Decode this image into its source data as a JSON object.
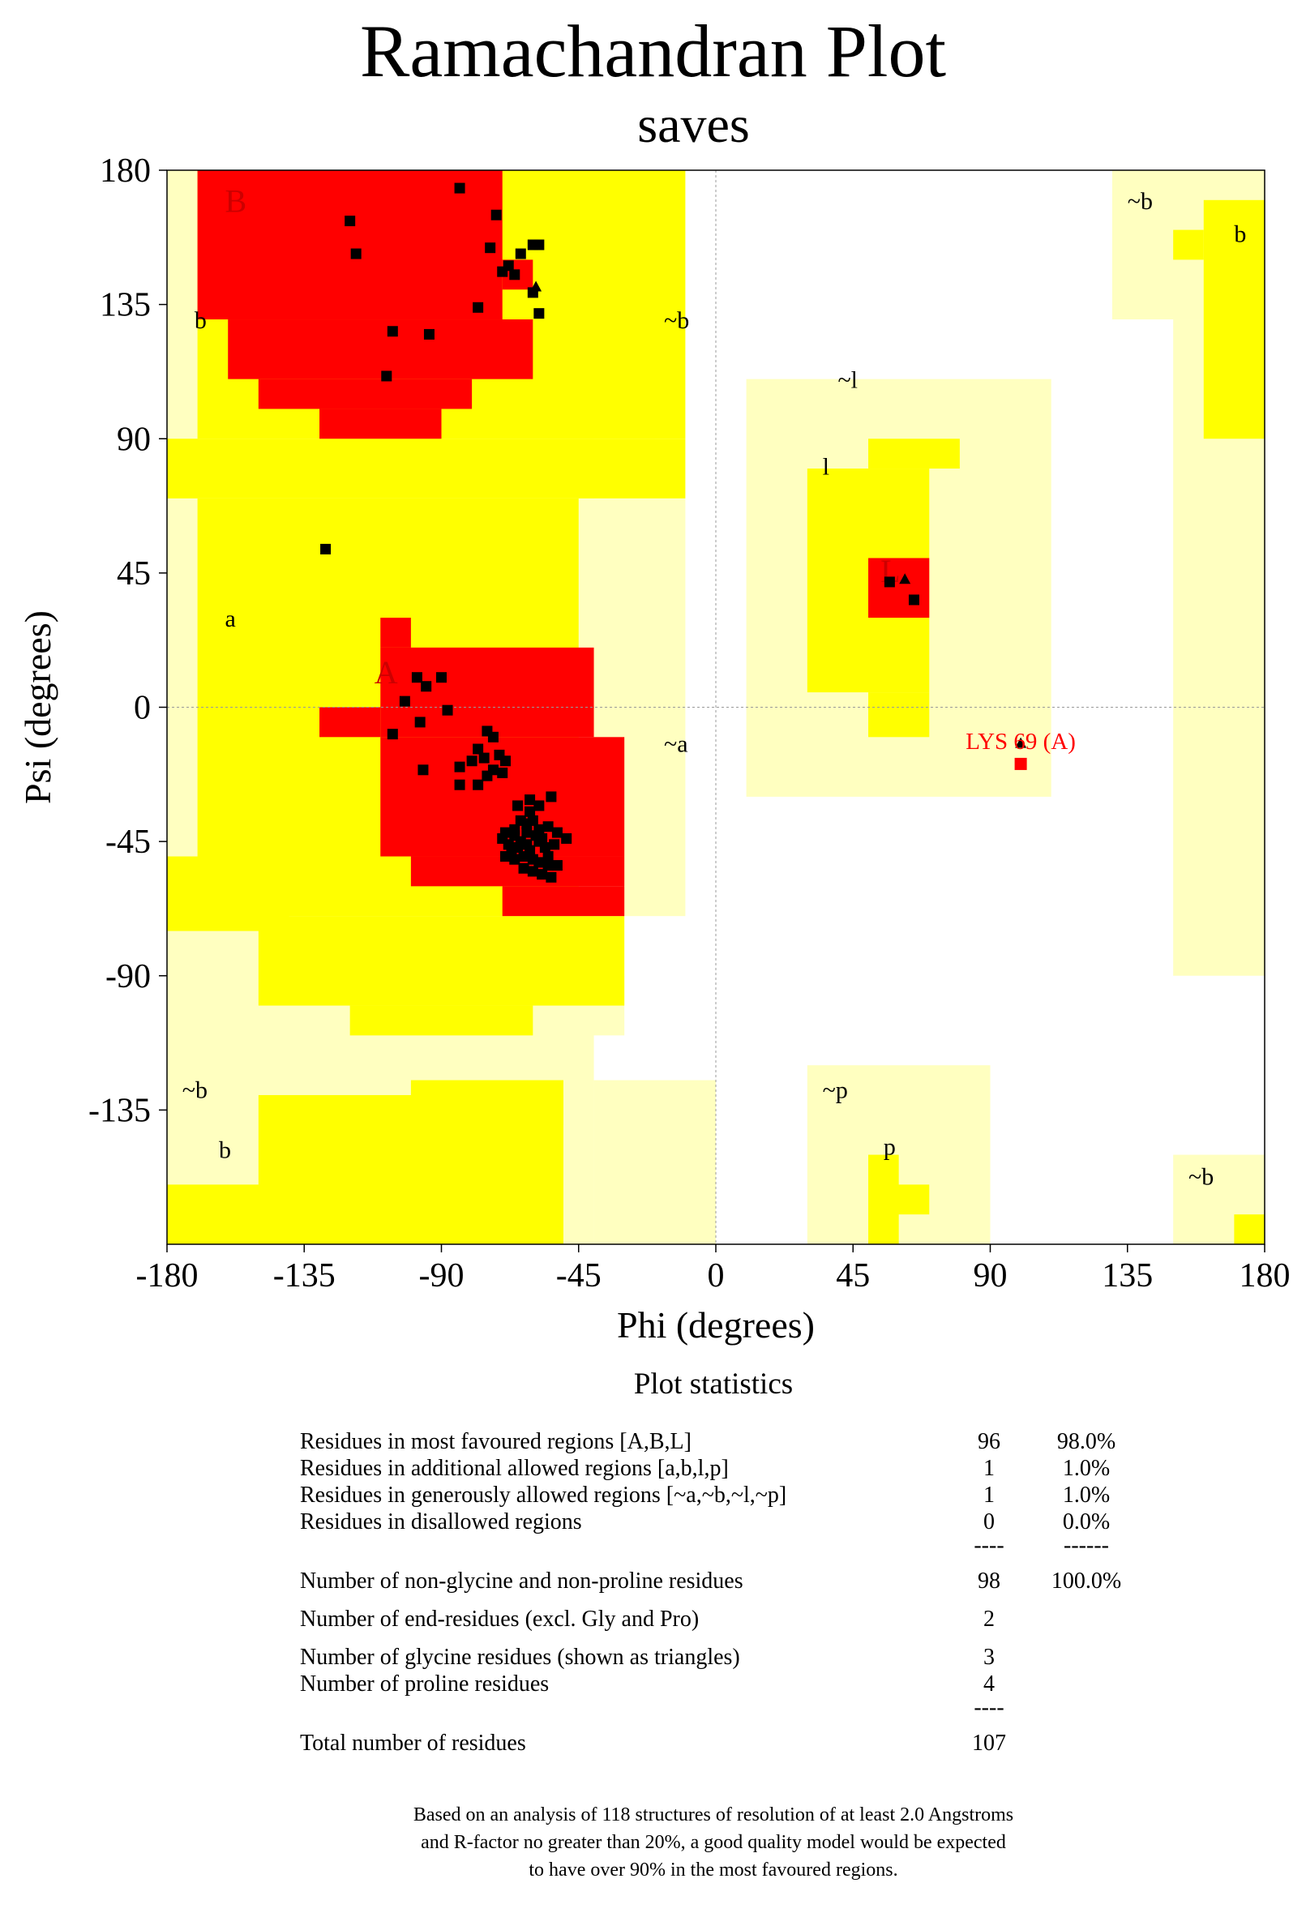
{
  "chart_data": {
    "type": "scatter",
    "title": "Ramachandran Plot",
    "subtitle": "saves",
    "xlabel": "Phi (degrees)",
    "ylabel": "Psi (degrees)",
    "xlim": [
      -180,
      180
    ],
    "ylim": [
      -180,
      180
    ],
    "xticks": [
      "-180",
      "-135",
      "-90",
      "-45",
      "0",
      "45",
      "90",
      "135",
      "180"
    ],
    "yticks": [
      "180",
      "135",
      "90",
      "45",
      "0",
      "-45",
      "-90",
      "-135"
    ],
    "region_colors": {
      "most_favoured": "#ff0000",
      "additional_allowed": "#ffff00",
      "generously_allowed": "#ffffc0",
      "disallowed": "#ffffff"
    },
    "region_labels": [
      {
        "text": "B",
        "phi": -161,
        "psi": 166,
        "color": "#cc0000"
      },
      {
        "text": "b",
        "phi": -171,
        "psi": 127
      },
      {
        "text": "~b",
        "phi": -17,
        "psi": 127
      },
      {
        "text": "~b",
        "phi": 135,
        "psi": 167
      },
      {
        "text": "b",
        "phi": 170,
        "psi": 156
      },
      {
        "text": "~l",
        "phi": 40,
        "psi": 107
      },
      {
        "text": "l",
        "phi": 35,
        "psi": 78
      },
      {
        "text": "L",
        "phi": 54,
        "psi": 42,
        "color": "#cc0000"
      },
      {
        "text": "a",
        "phi": -161,
        "psi": 27
      },
      {
        "text": "A",
        "phi": -112,
        "psi": 8,
        "color": "#cc0000"
      },
      {
        "text": "~a",
        "phi": -17,
        "psi": -15
      },
      {
        "text": "~b",
        "phi": -175,
        "psi": -131
      },
      {
        "text": "b",
        "phi": -163,
        "psi": -151
      },
      {
        "text": "~p",
        "phi": 35,
        "psi": -131
      },
      {
        "text": "p",
        "phi": 55,
        "psi": -150
      },
      {
        "text": "~b",
        "phi": 155,
        "psi": -160
      }
    ],
    "series": [
      {
        "name": "non-glycine residues",
        "marker": "square",
        "points": [
          [
            -84,
            174
          ],
          [
            -120,
            163
          ],
          [
            -72,
            165
          ],
          [
            -118,
            152
          ],
          [
            -74,
            154
          ],
          [
            -58,
            155
          ],
          [
            -60,
            155
          ],
          [
            -64,
            152
          ],
          [
            -68,
            148
          ],
          [
            -66,
            145
          ],
          [
            -70,
            146
          ],
          [
            -60,
            139
          ],
          [
            -78,
            134
          ],
          [
            -58,
            132
          ],
          [
            -106,
            126
          ],
          [
            -94,
            125
          ],
          [
            -108,
            111
          ],
          [
            -128,
            53
          ],
          [
            -98,
            10
          ],
          [
            -90,
            10
          ],
          [
            -95,
            7
          ],
          [
            -102,
            2
          ],
          [
            -88,
            -1
          ],
          [
            -97,
            -5
          ],
          [
            -106,
            -9
          ],
          [
            -75,
            -8
          ],
          [
            -73,
            -10
          ],
          [
            -80,
            -18
          ],
          [
            -76,
            -17
          ],
          [
            -71,
            -16
          ],
          [
            -69,
            -18
          ],
          [
            -73,
            -21
          ],
          [
            -78,
            -14
          ],
          [
            -84,
            -20
          ],
          [
            -75,
            -23
          ],
          [
            -70,
            -22
          ],
          [
            -96,
            -21
          ],
          [
            -78,
            -26
          ],
          [
            -84,
            -26
          ],
          [
            -61,
            -31
          ],
          [
            -65,
            -33
          ],
          [
            -61,
            -35
          ],
          [
            -58,
            -33
          ],
          [
            -54,
            -30
          ],
          [
            -64,
            -38
          ],
          [
            -60,
            -38
          ],
          [
            -66,
            -41
          ],
          [
            -69,
            -42
          ],
          [
            -66,
            -43
          ],
          [
            -62,
            -42
          ],
          [
            -58,
            -41
          ],
          [
            -55,
            -40
          ],
          [
            -52,
            -42
          ],
          [
            -70,
            -44
          ],
          [
            -68,
            -46
          ],
          [
            -65,
            -47
          ],
          [
            -62,
            -46
          ],
          [
            -58,
            -45
          ],
          [
            -56,
            -47
          ],
          [
            -53,
            -46
          ],
          [
            -49,
            -44
          ],
          [
            -69,
            -50
          ],
          [
            -66,
            -51
          ],
          [
            -63,
            -50
          ],
          [
            -60,
            -51
          ],
          [
            -58,
            -52
          ],
          [
            -55,
            -53
          ],
          [
            -52,
            -53
          ],
          [
            -63,
            -54
          ],
          [
            -60,
            -55
          ],
          [
            -57,
            -56
          ],
          [
            -54,
            -57
          ],
          [
            -62,
            -39
          ],
          [
            -55,
            -50
          ],
          [
            -67,
            -48
          ],
          [
            -61,
            -48
          ],
          [
            -59,
            -43
          ],
          [
            -64,
            -45
          ],
          [
            -57,
            -44
          ],
          [
            57,
            42
          ],
          [
            65,
            36
          ]
        ]
      },
      {
        "name": "glycine residues (triangles)",
        "marker": "triangle",
        "points": [
          [
            -59,
            141
          ],
          [
            62,
            43
          ],
          [
            100,
            -12
          ]
        ]
      },
      {
        "name": "disallowed",
        "marker": "square",
        "color": "#ff0000",
        "points": [
          [
            100,
            -19
          ]
        ]
      }
    ],
    "annotations": [
      {
        "text": "LYS 69 (A)",
        "phi": 100,
        "psi": -14,
        "color": "#ff0000"
      }
    ]
  },
  "statistics": {
    "heading": "Plot statistics",
    "rows": [
      {
        "label": "Residues in most favoured regions  [A,B,L]",
        "count": "96",
        "percent": "98.0%"
      },
      {
        "label": "Residues in additional allowed regions  [a,b,l,p]",
        "count": "1",
        "percent": "1.0%"
      },
      {
        "label": "Residues in generously allowed regions  [~a,~b,~l,~p]",
        "count": "1",
        "percent": "1.0%"
      },
      {
        "label": "Residues in disallowed regions",
        "count": "0",
        "percent": "0.0%"
      },
      {
        "label": "",
        "count": "----",
        "percent": "------"
      },
      {
        "label": "Number of non-glycine and non-proline residues",
        "count": "98",
        "percent": "100.0%"
      },
      {
        "label": "Number of end-residues (excl. Gly and Pro)",
        "count": "2",
        "percent": ""
      },
      {
        "label": "Number of glycine residues (shown as triangles)",
        "count": "3",
        "percent": ""
      },
      {
        "label": "Number of proline residues",
        "count": "4",
        "percent": ""
      },
      {
        "label": "",
        "count": "----",
        "percent": ""
      },
      {
        "label": "Total number of residues",
        "count": "107",
        "percent": ""
      }
    ]
  },
  "footnote": [
    "Based on an analysis of 118 structures of resolution of at least 2.0 Angstroms",
    "and R-factor no greater than 20%, a good quality model would be expected",
    "to have over 90% in the most favoured regions."
  ]
}
